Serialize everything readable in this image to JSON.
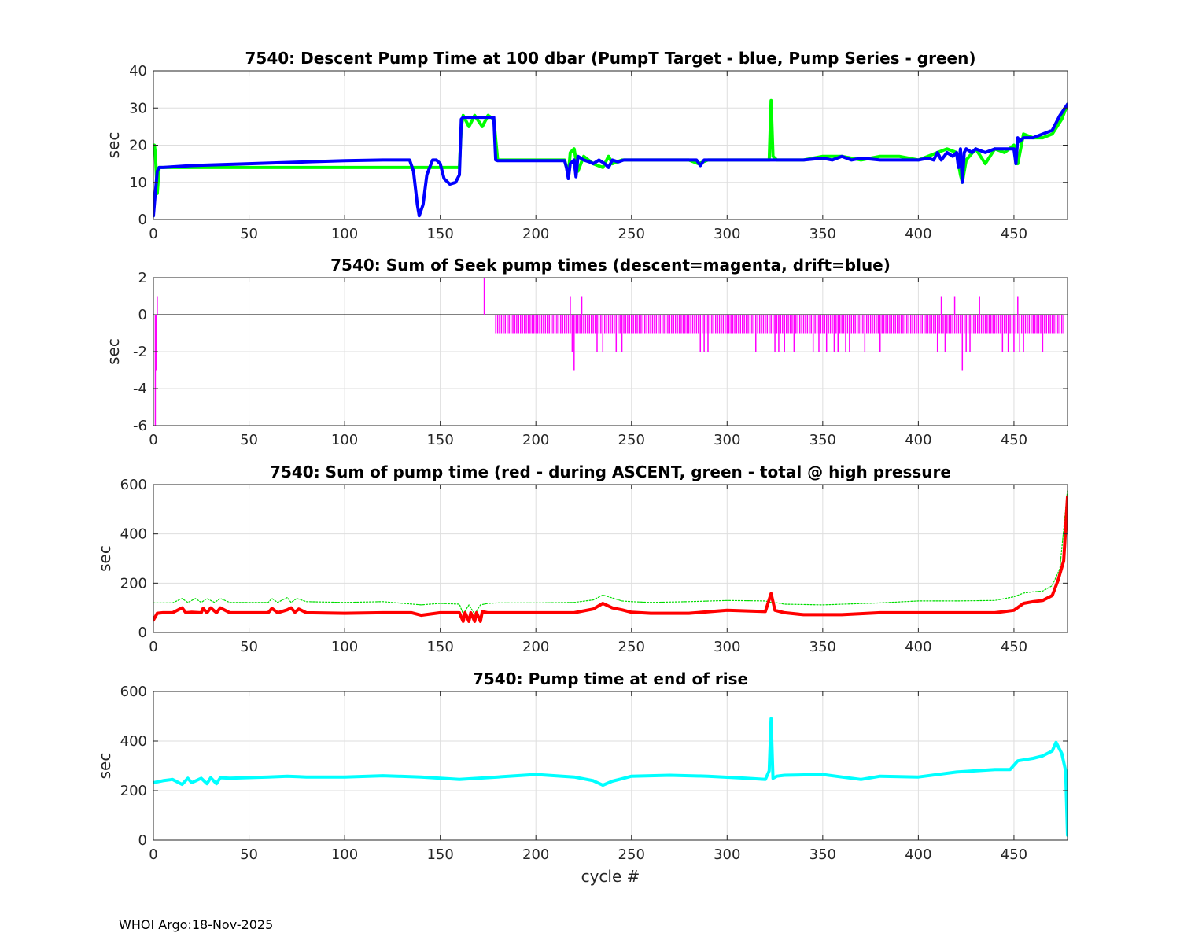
{
  "footer": "WHOI Argo:18-Nov-2025",
  "chart_data": [
    {
      "type": "line",
      "title": "7540: Descent Pump Time at 100 dbar (PumpT Target - blue, Pump Series - green)",
      "ylabel": "sec",
      "xlabel": "",
      "xlim": [
        0,
        478
      ],
      "ylim": [
        0,
        40
      ],
      "xticks": [
        0,
        50,
        100,
        150,
        200,
        250,
        300,
        350,
        400,
        450
      ],
      "yticks": [
        0,
        10,
        20,
        30,
        40
      ],
      "grid": true,
      "series": [
        {
          "color": "#00ff00",
          "width": 4,
          "x": [
            0,
            0.5,
            1,
            2,
            3,
            5,
            60,
            100,
            136,
            140,
            145,
            160,
            161,
            162,
            165,
            168,
            172,
            175,
            178,
            180,
            190,
            200,
            215,
            217,
            218,
            220,
            222,
            225,
            230,
            235,
            238,
            240,
            245,
            250,
            260,
            280,
            285,
            290,
            300,
            310,
            320,
            322,
            323,
            324,
            326,
            330,
            340,
            350,
            360,
            370,
            380,
            390,
            400,
            405,
            410,
            415,
            420,
            422,
            423,
            425,
            430,
            435,
            440,
            445,
            450,
            452,
            455,
            460,
            465,
            470,
            475,
            478
          ],
          "y": [
            19,
            20,
            18,
            7,
            14,
            14,
            14,
            14,
            14,
            14,
            14,
            14,
            25,
            28,
            25,
            28,
            25,
            28,
            27,
            16,
            16,
            16,
            16,
            12,
            18,
            19,
            13,
            17,
            15,
            14,
            17,
            15,
            16,
            16,
            16,
            16,
            15,
            16,
            16,
            16,
            16,
            16,
            32,
            17,
            16,
            16,
            16,
            17,
            17,
            16,
            17,
            17,
            16,
            17,
            18,
            19,
            18,
            12,
            10,
            16,
            19,
            15,
            19,
            18,
            20,
            15,
            23,
            22,
            22,
            23,
            27,
            31
          ]
        },
        {
          "color": "#0000ff",
          "width": 4,
          "x": [
            0,
            1,
            2,
            3,
            5,
            20,
            50,
            80,
            100,
            120,
            134,
            136,
            138,
            139,
            141,
            143,
            146,
            148,
            150,
            152,
            155,
            158,
            160,
            161,
            162,
            170,
            175,
            178,
            179,
            180,
            190,
            200,
            210,
            215,
            216,
            217,
            218,
            220,
            221,
            222,
            225,
            228,
            230,
            233,
            236,
            238,
            240,
            243,
            246,
            250,
            260,
            270,
            280,
            284,
            286,
            288,
            290,
            300,
            310,
            320,
            325,
            330,
            340,
            350,
            355,
            360,
            365,
            370,
            380,
            390,
            400,
            405,
            408,
            410,
            412,
            415,
            418,
            420,
            421,
            422,
            423,
            424,
            425,
            428,
            430,
            435,
            440,
            445,
            450,
            451,
            452,
            453,
            455,
            460,
            465,
            470,
            474,
            478
          ],
          "y": [
            1,
            7,
            13,
            14,
            14,
            14.5,
            15,
            15.5,
            15.8,
            16,
            16,
            13,
            4,
            1,
            4,
            12,
            16,
            16,
            15,
            11,
            9.5,
            10,
            12,
            27,
            27.5,
            27.5,
            27.5,
            27.5,
            16,
            15.8,
            15.8,
            15.8,
            15.8,
            15.8,
            14,
            11,
            15,
            16,
            11.5,
            17,
            16,
            15.5,
            15,
            16,
            15,
            14,
            16,
            15.5,
            16,
            16,
            16,
            16,
            16,
            16,
            14.5,
            16,
            16,
            16,
            16,
            16,
            16,
            16,
            16,
            16.5,
            16,
            17,
            16,
            16.5,
            16,
            16,
            16,
            16.5,
            16,
            18,
            16,
            18,
            17,
            18,
            14,
            19,
            10,
            18,
            19,
            18,
            19,
            18,
            19,
            19,
            19,
            15,
            22,
            21,
            22,
            22,
            23,
            24,
            28,
            31
          ]
        }
      ]
    },
    {
      "type": "bar",
      "title": "7540: Sum of Seek pump times (descent=magenta, drift=blue)",
      "ylabel": "sec",
      "xlabel": "",
      "xlim": [
        0,
        478
      ],
      "ylim": [
        -6,
        2
      ],
      "xticks": [
        0,
        50,
        100,
        150,
        200,
        250,
        300,
        350,
        400,
        450
      ],
      "yticks": [
        -6,
        -4,
        -2,
        0,
        2
      ],
      "grid": true,
      "color": "#ff00ff",
      "stems": {
        "range_start": 179,
        "range_end": 476,
        "base_value": -1,
        "x": [
          1,
          1.5,
          2,
          173,
          218,
          219,
          220,
          222,
          224,
          232,
          235,
          242,
          245,
          286,
          288,
          290,
          315,
          325,
          327,
          330,
          335,
          345,
          348,
          352,
          356,
          358,
          362,
          364,
          372,
          380,
          410,
          412,
          414,
          419,
          423,
          425,
          427,
          432,
          444,
          447,
          450,
          452,
          453,
          455,
          465
        ],
        "y": [
          -6,
          -3,
          1,
          2,
          1,
          -2,
          -3,
          -1,
          1,
          -2,
          -2,
          -2,
          -2,
          -2,
          -2,
          -2,
          -2,
          -2,
          -2,
          -2,
          -2,
          -2,
          -2,
          -2,
          -2,
          -2,
          -2,
          -2,
          -2,
          -2,
          -2,
          1,
          -2,
          1,
          -3,
          -2,
          -2,
          1,
          -2,
          -2,
          -2,
          1,
          -2,
          -2,
          -2
        ]
      }
    },
    {
      "type": "line",
      "title": "7540: Sum of pump time (red - during ASCENT, green - total @ high pressure",
      "ylabel": "sec",
      "xlabel": "",
      "xlim": [
        0,
        478
      ],
      "ylim": [
        0,
        600
      ],
      "xticks": [
        0,
        50,
        100,
        150,
        200,
        250,
        300,
        350,
        400,
        450
      ],
      "yticks": [
        0,
        200,
        400,
        600
      ],
      "grid": true,
      "series": [
        {
          "color": "#00dd00",
          "width": 1.2,
          "dashed": true,
          "x": [
            0,
            10,
            15,
            18,
            22,
            25,
            28,
            32,
            35,
            40,
            60,
            62,
            65,
            70,
            72,
            75,
            80,
            100,
            120,
            140,
            150,
            160,
            162,
            165,
            168,
            171,
            175,
            180,
            200,
            220,
            230,
            235,
            240,
            245,
            250,
            260,
            280,
            300,
            320,
            323,
            325,
            330,
            350,
            380,
            400,
            420,
            440,
            450,
            455,
            460,
            465,
            470,
            474,
            478
          ],
          "y": [
            120,
            120,
            138,
            122,
            138,
            122,
            138,
            122,
            138,
            122,
            122,
            138,
            122,
            142,
            122,
            138,
            125,
            122,
            125,
            112,
            118,
            115,
            75,
            112,
            75,
            112,
            118,
            120,
            120,
            122,
            132,
            152,
            140,
            128,
            125,
            122,
            125,
            130,
            128,
            122,
            122,
            115,
            112,
            120,
            128,
            128,
            130,
            145,
            160,
            165,
            168,
            190,
            260,
            580
          ]
        },
        {
          "color": "#ff0000",
          "width": 4,
          "x": [
            0,
            2,
            5,
            10,
            15,
            17,
            20,
            25,
            26,
            28,
            30,
            33,
            35,
            40,
            60,
            62,
            65,
            70,
            72,
            74,
            76,
            80,
            100,
            120,
            135,
            140,
            150,
            160,
            162,
            163,
            165,
            166,
            168,
            169,
            171,
            172,
            175,
            180,
            200,
            220,
            230,
            235,
            240,
            245,
            250,
            260,
            280,
            300,
            320,
            323,
            325,
            330,
            340,
            350,
            360,
            380,
            400,
            420,
            440,
            450,
            455,
            460,
            465,
            470,
            473,
            476,
            478
          ],
          "y": [
            50,
            78,
            80,
            80,
            100,
            80,
            82,
            80,
            98,
            80,
            100,
            80,
            100,
            80,
            80,
            98,
            80,
            92,
            100,
            82,
            95,
            80,
            78,
            80,
            80,
            70,
            80,
            80,
            45,
            80,
            45,
            80,
            45,
            80,
            45,
            85,
            80,
            80,
            80,
            80,
            95,
            118,
            100,
            92,
            82,
            78,
            78,
            90,
            85,
            158,
            90,
            80,
            72,
            72,
            72,
            80,
            80,
            80,
            80,
            90,
            118,
            125,
            130,
            150,
            210,
            290,
            550
          ]
        }
      ]
    },
    {
      "type": "line",
      "title": "7540: Pump time at end of rise",
      "ylabel": "sec",
      "xlabel": "cycle #",
      "xlim": [
        0,
        478
      ],
      "ylim": [
        0,
        600
      ],
      "xticks": [
        0,
        50,
        100,
        150,
        200,
        250,
        300,
        350,
        400,
        450
      ],
      "yticks": [
        0,
        200,
        400,
        600
      ],
      "grid": true,
      "series": [
        {
          "color": "#00ffff",
          "width": 4,
          "x": [
            0,
            5,
            10,
            15,
            18,
            20,
            25,
            28,
            30,
            33,
            35,
            40,
            60,
            70,
            80,
            100,
            120,
            140,
            160,
            180,
            200,
            220,
            230,
            235,
            240,
            245,
            250,
            270,
            290,
            310,
            320,
            322,
            323,
            324,
            326,
            330,
            350,
            360,
            370,
            380,
            400,
            420,
            440,
            448,
            452,
            460,
            465,
            470,
            472,
            475,
            477,
            478
          ],
          "y": [
            232,
            240,
            245,
            225,
            250,
            232,
            250,
            228,
            252,
            228,
            252,
            250,
            255,
            258,
            255,
            255,
            260,
            255,
            245,
            255,
            265,
            255,
            240,
            222,
            238,
            248,
            258,
            262,
            258,
            250,
            245,
            280,
            490,
            250,
            258,
            262,
            265,
            255,
            245,
            258,
            255,
            275,
            285,
            285,
            320,
            330,
            340,
            360,
            395,
            350,
            280,
            20
          ]
        }
      ]
    }
  ]
}
